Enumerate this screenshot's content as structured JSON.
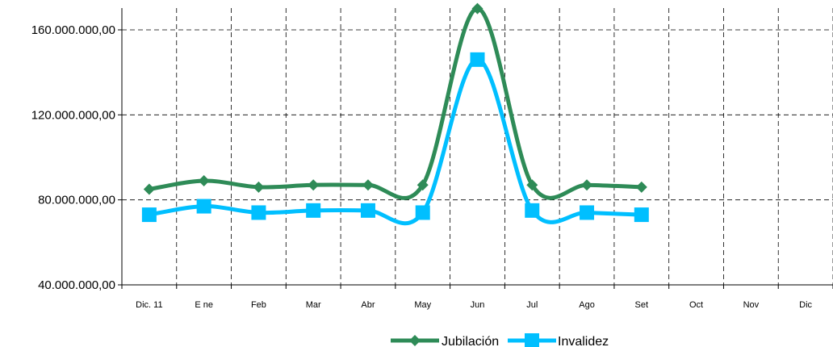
{
  "chart_data": {
    "type": "line",
    "categories": [
      "Dic. 11",
      "E ne",
      "Feb",
      "Mar",
      "Abr",
      "May",
      "Jun",
      "Jul",
      "Ago",
      "Set",
      "Oct",
      "Nov",
      "Dic"
    ],
    "ylim": [
      40000000,
      165000000
    ],
    "yticks": [
      40000000,
      80000000,
      120000000,
      160000000
    ],
    "ytick_labels": [
      "40.000.000,00",
      "80.000.000,00",
      "120.000.000,00",
      "160.000.000,00"
    ],
    "grid": true,
    "legend_position": "bottom",
    "series": [
      {
        "name": "Jubilación",
        "color": "#2e8b57",
        "marker": "diamond",
        "values": [
          85000000,
          89000000,
          86000000,
          87000000,
          87000000,
          87000000,
          170000000,
          87000000,
          87000000,
          86000000,
          null,
          null,
          null
        ]
      },
      {
        "name": "Invalidez",
        "color": "#00bfff",
        "marker": "square",
        "values": [
          73000000,
          77000000,
          74000000,
          75000000,
          75000000,
          74000000,
          146000000,
          75000000,
          74000000,
          73000000,
          null,
          null,
          null
        ]
      }
    ]
  }
}
